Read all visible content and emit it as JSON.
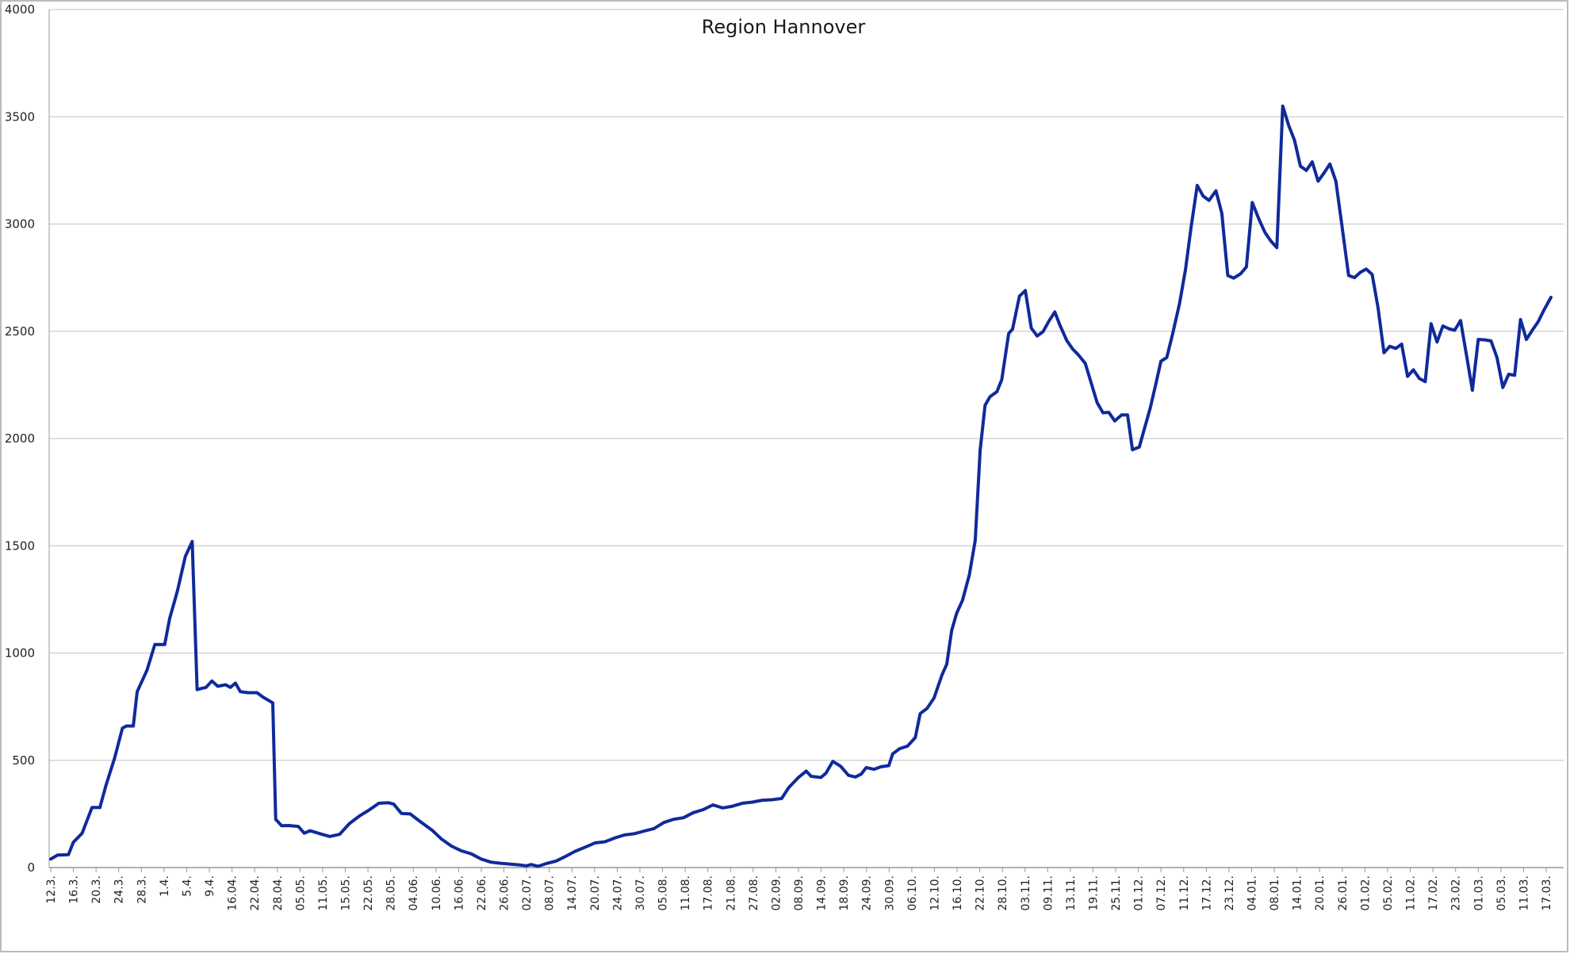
{
  "chart_data": {
    "type": "line",
    "title": "Region Hannover",
    "xlabel": "",
    "ylabel": "",
    "ylim": [
      0,
      4000
    ],
    "yticks": [
      0,
      500,
      1000,
      1500,
      2000,
      2500,
      3000,
      3500,
      4000
    ],
    "grid": true,
    "legend": "none",
    "colors": {
      "line": "#0f2a9c",
      "grid": "#cccccc",
      "axis": "#999999"
    },
    "xtick_labels": [
      "12.3.",
      "16.3.",
      "20.3.",
      "24.3.",
      "28.3.",
      "1.4.",
      "5.4.",
      "9.4.",
      "16.04.",
      "22.04.",
      "28.04.",
      "05.05.",
      "11.05.",
      "15.05.",
      "22.05.",
      "28.05.",
      "04.06.",
      "10.06.",
      "16.06.",
      "22.06.",
      "26.06.",
      "02.07.",
      "08.07.",
      "14.07.",
      "20.07.",
      "24.07.",
      "30.07.",
      "05.08.",
      "11.08.",
      "17.08.",
      "21.08.",
      "27.08.",
      "02.09.",
      "08.09.",
      "14.09.",
      "18.09.",
      "24.09.",
      "30.09.",
      "06.10.",
      "12.10.",
      "16.10.",
      "22.10.",
      "28.10.",
      "03.11.",
      "09.11.",
      "13.11.",
      "19.11.",
      "25.11.",
      "01.12.",
      "07.12.",
      "11.12.",
      "17.12.",
      "23.12.",
      "04.01.",
      "08.01.",
      "14.01.",
      "20.01.",
      "26.01.",
      "01.02.",
      "05.02.",
      "11.02.",
      "17.02.",
      "23.02.",
      "01.03.",
      "05.03.",
      "11.03.",
      "17.03."
    ],
    "series": [
      {
        "points": [
          [
            0,
            40
          ],
          [
            0.7,
            58
          ],
          [
            1.8,
            60
          ],
          [
            2.3,
            118
          ],
          [
            3.2,
            160
          ],
          [
            4.2,
            280
          ],
          [
            5,
            280
          ],
          [
            5.6,
            380
          ],
          [
            6.5,
            510
          ],
          [
            7.3,
            650
          ],
          [
            7.7,
            660
          ],
          [
            8.4,
            660
          ],
          [
            8.8,
            820
          ],
          [
            9.8,
            920
          ],
          [
            10.6,
            1040
          ],
          [
            11.6,
            1040
          ],
          [
            12.1,
            1160
          ],
          [
            12.9,
            1290
          ],
          [
            13.7,
            1450
          ],
          [
            14.4,
            1520
          ],
          [
            14.9,
            830
          ],
          [
            15.8,
            840
          ],
          [
            16.4,
            870
          ],
          [
            17,
            845
          ],
          [
            17.8,
            852
          ],
          [
            18.3,
            840
          ],
          [
            18.8,
            860
          ],
          [
            19.3,
            820
          ],
          [
            20.1,
            815
          ],
          [
            21,
            815
          ],
          [
            21.6,
            795
          ],
          [
            22.6,
            768
          ],
          [
            22.9,
            225
          ],
          [
            23.5,
            195
          ],
          [
            24.2,
            196
          ],
          [
            25.2,
            192
          ],
          [
            25.8,
            160
          ],
          [
            26.4,
            172
          ],
          [
            27.4,
            158
          ],
          [
            28.4,
            145
          ],
          [
            29.4,
            155
          ],
          [
            30.4,
            205
          ],
          [
            31.4,
            240
          ],
          [
            32.4,
            268
          ],
          [
            33.4,
            300
          ],
          [
            34.4,
            302
          ],
          [
            34.9,
            296
          ],
          [
            35.7,
            252
          ],
          [
            36.6,
            250
          ],
          [
            37.5,
            218
          ],
          [
            38.8,
            175
          ],
          [
            39.8,
            132
          ],
          [
            40.8,
            100
          ],
          [
            41.8,
            78
          ],
          [
            42.8,
            64
          ],
          [
            43.8,
            40
          ],
          [
            44.8,
            25
          ],
          [
            45.8,
            20
          ],
          [
            46.8,
            16
          ],
          [
            47.8,
            12
          ],
          [
            48.4,
            8
          ],
          [
            48.9,
            14
          ],
          [
            49.6,
            6
          ],
          [
            50.4,
            18
          ],
          [
            51.4,
            30
          ],
          [
            52.4,
            52
          ],
          [
            53.4,
            76
          ],
          [
            54.4,
            95
          ],
          [
            55.4,
            115
          ],
          [
            56.4,
            120
          ],
          [
            57.4,
            138
          ],
          [
            58.4,
            152
          ],
          [
            59.4,
            158
          ],
          [
            60.4,
            170
          ],
          [
            61.4,
            182
          ],
          [
            62.4,
            210
          ],
          [
            63.4,
            225
          ],
          [
            64.4,
            232
          ],
          [
            65.4,
            256
          ],
          [
            66.4,
            270
          ],
          [
            67.4,
            292
          ],
          [
            68.4,
            278
          ],
          [
            69.4,
            286
          ],
          [
            70.4,
            300
          ],
          [
            71.4,
            305
          ],
          [
            72.4,
            314
          ],
          [
            73.4,
            316
          ],
          [
            74.4,
            322
          ],
          [
            75.1,
            372
          ],
          [
            76.1,
            420
          ],
          [
            76.9,
            450
          ],
          [
            77.4,
            425
          ],
          [
            78.4,
            420
          ],
          [
            78.9,
            440
          ],
          [
            79.6,
            495
          ],
          [
            80.4,
            472
          ],
          [
            81.2,
            430
          ],
          [
            81.9,
            422
          ],
          [
            82.5,
            436
          ],
          [
            83,
            466
          ],
          [
            83.8,
            458
          ],
          [
            84.5,
            470
          ],
          [
            85.3,
            475
          ],
          [
            85.7,
            530
          ],
          [
            86.4,
            554
          ],
          [
            87.2,
            566
          ],
          [
            88,
            606
          ],
          [
            88.5,
            718
          ],
          [
            89.2,
            742
          ],
          [
            89.9,
            790
          ],
          [
            90.7,
            896
          ],
          [
            91.2,
            948
          ],
          [
            91.7,
            1105
          ],
          [
            92.2,
            1185
          ],
          [
            92.8,
            1245
          ],
          [
            93.5,
            1365
          ],
          [
            94.1,
            1525
          ],
          [
            94.6,
            1945
          ],
          [
            95.1,
            2155
          ],
          [
            95.6,
            2195
          ],
          [
            96.3,
            2218
          ],
          [
            96.8,
            2275
          ],
          [
            97.5,
            2490
          ],
          [
            97.9,
            2510
          ],
          [
            98.6,
            2664
          ],
          [
            99.2,
            2690
          ],
          [
            99.8,
            2515
          ],
          [
            100.4,
            2478
          ],
          [
            101,
            2498
          ],
          [
            101.6,
            2548
          ],
          [
            102.2,
            2590
          ],
          [
            102.7,
            2530
          ],
          [
            103.4,
            2458
          ],
          [
            104,
            2418
          ],
          [
            104.6,
            2390
          ],
          [
            105.3,
            2350
          ],
          [
            105.9,
            2260
          ],
          [
            106.5,
            2168
          ],
          [
            107.1,
            2120
          ],
          [
            107.7,
            2122
          ],
          [
            108.3,
            2082
          ],
          [
            109,
            2110
          ],
          [
            109.6,
            2110
          ],
          [
            110.1,
            1948
          ],
          [
            110.8,
            1960
          ],
          [
            111.3,
            2042
          ],
          [
            111.9,
            2140
          ],
          [
            112.5,
            2258
          ],
          [
            113,
            2360
          ],
          [
            113.6,
            2378
          ],
          [
            114.2,
            2490
          ],
          [
            114.9,
            2630
          ],
          [
            115.5,
            2788
          ],
          [
            116.1,
            2995
          ],
          [
            116.7,
            3180
          ],
          [
            117.3,
            3130
          ],
          [
            117.9,
            3110
          ],
          [
            118.6,
            3155
          ],
          [
            119.2,
            3050
          ],
          [
            119.8,
            2760
          ],
          [
            120.4,
            2748
          ],
          [
            121.1,
            2768
          ],
          [
            121.7,
            2800
          ],
          [
            122.3,
            3100
          ],
          [
            123,
            3020
          ],
          [
            123.6,
            2960
          ],
          [
            124.2,
            2920
          ],
          [
            124.8,
            2890
          ],
          [
            125.4,
            3550
          ],
          [
            126,
            3460
          ],
          [
            126.6,
            3390
          ],
          [
            127.2,
            3270
          ],
          [
            127.8,
            3250
          ],
          [
            128.4,
            3290
          ],
          [
            129,
            3200
          ],
          [
            129.6,
            3238
          ],
          [
            130.2,
            3280
          ],
          [
            130.8,
            3200
          ],
          [
            131.4,
            3000
          ],
          [
            132.1,
            2760
          ],
          [
            132.7,
            2750
          ],
          [
            133.3,
            2775
          ],
          [
            133.9,
            2790
          ],
          [
            134.5,
            2765
          ],
          [
            135.1,
            2610
          ],
          [
            135.7,
            2400
          ],
          [
            136.3,
            2430
          ],
          [
            136.9,
            2420
          ],
          [
            137.5,
            2440
          ],
          [
            138.1,
            2290
          ],
          [
            138.7,
            2320
          ],
          [
            139.3,
            2280
          ],
          [
            139.9,
            2265
          ],
          [
            140.5,
            2535
          ],
          [
            141.1,
            2450
          ],
          [
            141.7,
            2525
          ],
          [
            142.3,
            2512
          ],
          [
            142.9,
            2505
          ],
          [
            143.5,
            2550
          ],
          [
            144.1,
            2390
          ],
          [
            144.7,
            2225
          ],
          [
            145.3,
            2462
          ],
          [
            146,
            2460
          ],
          [
            146.6,
            2455
          ],
          [
            147.2,
            2378
          ],
          [
            147.8,
            2238
          ],
          [
            148.4,
            2300
          ],
          [
            149,
            2295
          ],
          [
            149.6,
            2555
          ],
          [
            150.2,
            2462
          ],
          [
            150.8,
            2505
          ],
          [
            151.4,
            2545
          ],
          [
            152,
            2600
          ],
          [
            152.7,
            2658
          ]
        ]
      }
    ]
  }
}
